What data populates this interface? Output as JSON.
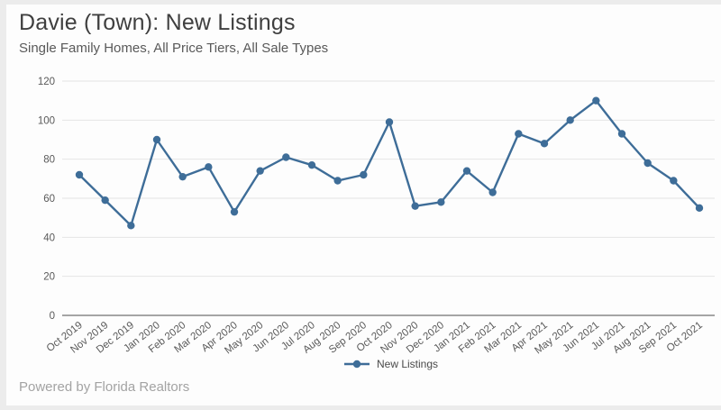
{
  "header": {
    "title": "Davie (Town): New Listings",
    "subtitle": "Single Family Homes, All Price Tiers, All Sale Types"
  },
  "legend": {
    "label": "New Listings"
  },
  "footer": {
    "text": "Powered by Florida Realtors"
  },
  "colors": {
    "line": "#3e6d98",
    "point": "#3e6d98",
    "grid": "#e4e4e4",
    "axis_line": "#4d4d4d",
    "tick_text": "#595959",
    "title": "#3f3f3f",
    "subtitle": "#595959",
    "footer": "#a3a3a3",
    "page_bg": "#ececec",
    "card_bg": "#fdfdfd"
  },
  "chart_data": {
    "type": "line",
    "title": "Davie (Town): New Listings",
    "subtitle": "Single Family Homes, All Price Tiers, All Sale Types",
    "categories": [
      "Oct 2019",
      "Nov 2019",
      "Dec 2019",
      "Jan 2020",
      "Feb 2020",
      "Mar 2020",
      "Apr 2020",
      "May 2020",
      "Jun 2020",
      "Jul 2020",
      "Aug 2020",
      "Sep 2020",
      "Oct 2020",
      "Nov 2020",
      "Dec 2020",
      "Jan 2021",
      "Feb 2021",
      "Mar 2021",
      "Apr 2021",
      "May 2021",
      "Jun 2021",
      "Jul 2021",
      "Aug 2021",
      "Sep 2021",
      "Oct 2021"
    ],
    "series": [
      {
        "name": "New Listings",
        "values": [
          72,
          59,
          46,
          90,
          71,
          76,
          53,
          74,
          81,
          77,
          69,
          72,
          99,
          56,
          58,
          74,
          63,
          93,
          88,
          100,
          110,
          93,
          78,
          69,
          55
        ]
      }
    ],
    "xlabel": "",
    "ylabel": "",
    "ylim": [
      0,
      120
    ],
    "yticks": [
      0,
      20,
      40,
      60,
      80,
      100,
      120
    ],
    "grid": true,
    "legend_position": "bottom"
  }
}
